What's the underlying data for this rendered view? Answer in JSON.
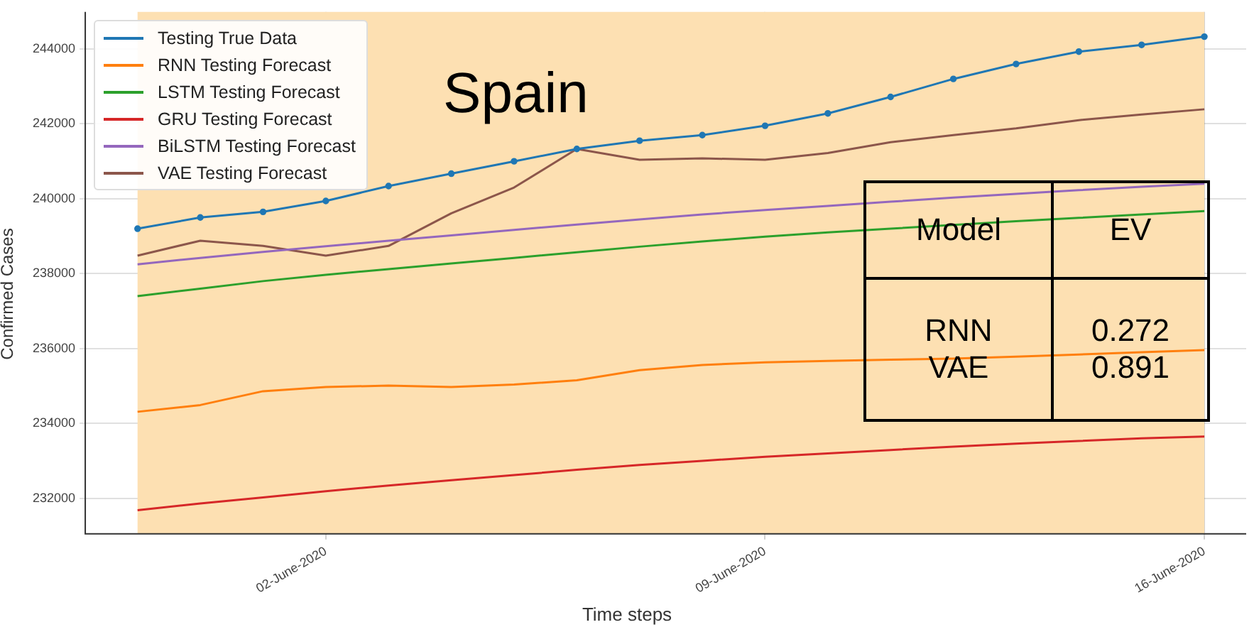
{
  "chart_data": {
    "type": "line",
    "title": "Spain",
    "xlabel": "Time steps",
    "ylabel": "Confirmed Cases",
    "x": [
      "2020-05-30",
      "2020-05-31",
      "2020-06-01",
      "2020-06-02",
      "2020-06-03",
      "2020-06-04",
      "2020-06-05",
      "2020-06-06",
      "2020-06-07",
      "2020-06-08",
      "2020-06-09",
      "2020-06-10",
      "2020-06-11",
      "2020-06-12",
      "2020-06-13",
      "2020-06-14",
      "2020-06-15",
      "2020-06-16"
    ],
    "series": [
      {
        "name": "Testing True  Data",
        "color": "#1f77b4",
        "marker": "circle",
        "values": [
          239200,
          239500,
          239650,
          239940,
          240340,
          240670,
          241000,
          241330,
          241550,
          241700,
          241950,
          242280,
          242720,
          243200,
          243600,
          243930,
          244110,
          244330
        ]
      },
      {
        "name": "RNN Testing Forecast",
        "color": "#ff7f0e",
        "values": [
          234310,
          234490,
          234860,
          234970,
          235010,
          234970,
          235040,
          235150,
          235420,
          235560,
          235630,
          235670,
          235700,
          235730,
          235780,
          235840,
          235900,
          235960
        ]
      },
      {
        "name": "LSTM Testing Forecast",
        "color": "#2ca02c",
        "values": [
          237400,
          237600,
          237800,
          237970,
          238120,
          238270,
          238420,
          238570,
          238720,
          238860,
          238990,
          239100,
          239200,
          239300,
          239400,
          239490,
          239580,
          239670
        ]
      },
      {
        "name": "GRU Testing Forecast",
        "color": "#d62728",
        "values": [
          231680,
          231860,
          232020,
          232190,
          232340,
          232480,
          232620,
          232760,
          232890,
          233000,
          233110,
          233200,
          233290,
          233380,
          233460,
          233530,
          233600,
          233650
        ]
      },
      {
        "name": "BiLSTM Testing Forecast",
        "color": "#9467bd",
        "values": [
          238250,
          238420,
          238580,
          238730,
          238880,
          239020,
          239170,
          239310,
          239450,
          239580,
          239700,
          239810,
          239920,
          240030,
          240130,
          240230,
          240320,
          240400
        ]
      },
      {
        "name": "VAE Testing Forecast",
        "color": "#8c564b",
        "values": [
          238480,
          238880,
          238740,
          238480,
          238740,
          239610,
          240300,
          241330,
          241040,
          241080,
          241040,
          241220,
          241510,
          241700,
          241880,
          242100,
          242250,
          242390
        ]
      }
    ],
    "xlim": [
      "2020-05-29T04:00",
      "2020-06-16T16:00"
    ],
    "xticks": [
      {
        "value": "2020-06-02",
        "label": "02-June-2020"
      },
      {
        "value": "2020-06-09",
        "label": "09-June-2020"
      },
      {
        "value": "2020-06-16",
        "label": "16-June-2020"
      }
    ],
    "ylim": [
      231050,
      244990
    ],
    "yticks": [
      232000,
      234000,
      236000,
      238000,
      240000,
      242000,
      244000
    ],
    "bands": [
      {
        "axis": "x",
        "from": "2020-05-30",
        "to": "2020-06-16",
        "color": "#fde0b2"
      }
    ],
    "annotations": [
      "Model",
      "EV",
      "RNN",
      "0.272",
      "VAE",
      "0.891"
    ],
    "grid": true,
    "legend": "top left",
    "line_style": "solid"
  }
}
